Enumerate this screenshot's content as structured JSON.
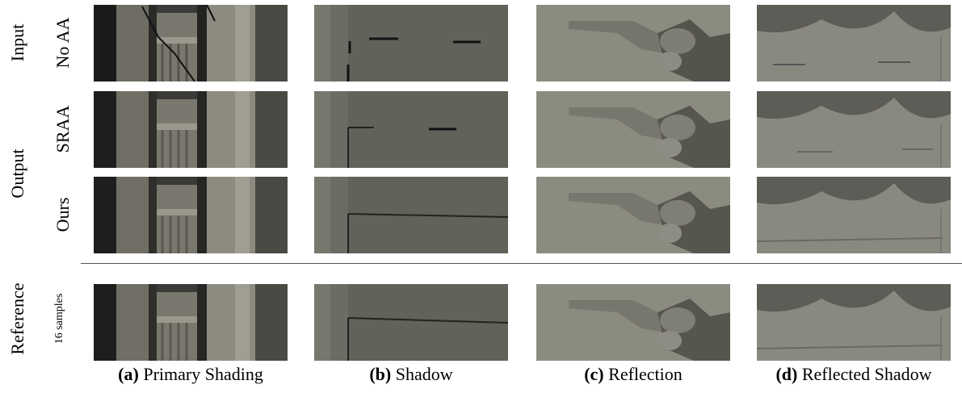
{
  "row_labels": {
    "group_input": "Input",
    "no_aa": "No AA",
    "srraa": "SRAA",
    "group_output": "Output",
    "ours": "Ours",
    "reference": "Reference",
    "samples": "16 samples"
  },
  "captions": [
    {
      "letter": "(a)",
      "text": " Primary Shading"
    },
    {
      "letter": "(b)",
      "text": " Shadow"
    },
    {
      "letter": "(c)",
      "text": " Reflection"
    },
    {
      "letter": "(d)",
      "text": " Reflected Shadow"
    }
  ]
}
